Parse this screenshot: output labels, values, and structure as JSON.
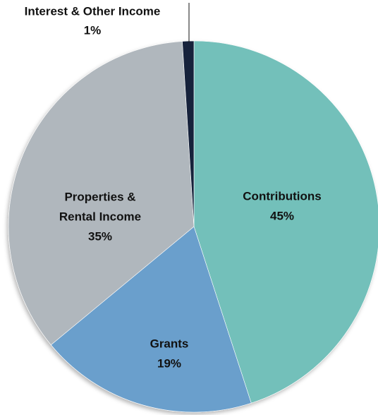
{
  "chart_data": {
    "type": "pie",
    "title": "",
    "slices": [
      {
        "label_lines": [
          "Contributions"
        ],
        "percent_label": "45%",
        "value": 45,
        "color": "#73c0ba"
      },
      {
        "label_lines": [
          "Grants"
        ],
        "percent_label": "19%",
        "value": 19,
        "color": "#6a9fcc"
      },
      {
        "label_lines": [
          "Properties &",
          "Rental Income"
        ],
        "percent_label": "35%",
        "value": 35,
        "color": "#b0b7bd"
      },
      {
        "label_lines": [
          "Interest & Other Income"
        ],
        "percent_label": "1%",
        "value": 1,
        "color": "#14233a"
      }
    ],
    "start": "12 o'clock",
    "direction": "clockwise",
    "legend": "none"
  }
}
